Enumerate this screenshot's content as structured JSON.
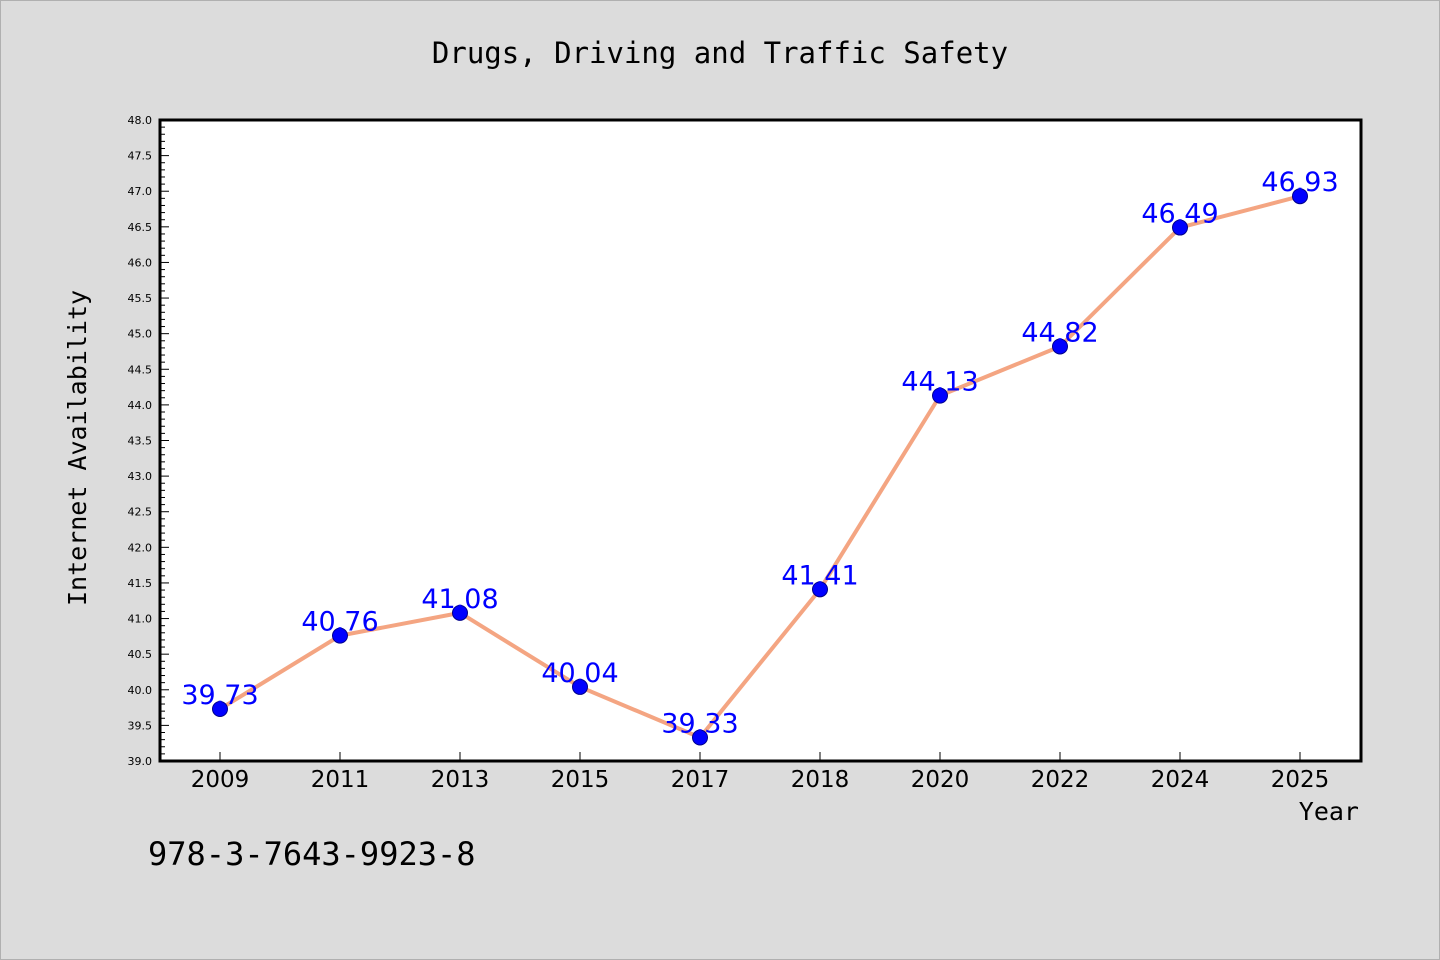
{
  "chart_data": {
    "type": "line",
    "title": "Drugs, Driving and Traffic Safety",
    "xlabel": "Year",
    "ylabel": "Internet Availability",
    "categories": [
      "2009",
      "2011",
      "2013",
      "2015",
      "2017",
      "2018",
      "2020",
      "2022",
      "2024",
      "2025"
    ],
    "values": [
      39.73,
      40.76,
      41.08,
      40.04,
      39.33,
      41.41,
      44.13,
      44.82,
      46.49,
      46.93
    ],
    "value_labels": [
      "39.73",
      "40.76",
      "41.08",
      "40.04",
      "39.33",
      "41.41",
      "44.13",
      "44.82",
      "46.49",
      "46.93"
    ],
    "ylim": [
      39.0,
      48.0
    ],
    "ytick_labels": [
      "39.0",
      "39.5",
      "40.0",
      "40.5",
      "41.0",
      "41.5",
      "42.0",
      "42.5",
      "43.0",
      "43.5",
      "44.0",
      "44.5",
      "45.0",
      "45.5",
      "46.0",
      "46.5",
      "47.0",
      "47.5",
      "48.0"
    ],
    "grid": false,
    "colors": {
      "line": "#f4a582",
      "marker": "#0000ff",
      "value_label": "#0000ff",
      "plot_background": "#ffffff",
      "figure_background": "#dcdcdc"
    }
  },
  "footer": {
    "isbn": "978-3-7643-9923-8"
  }
}
